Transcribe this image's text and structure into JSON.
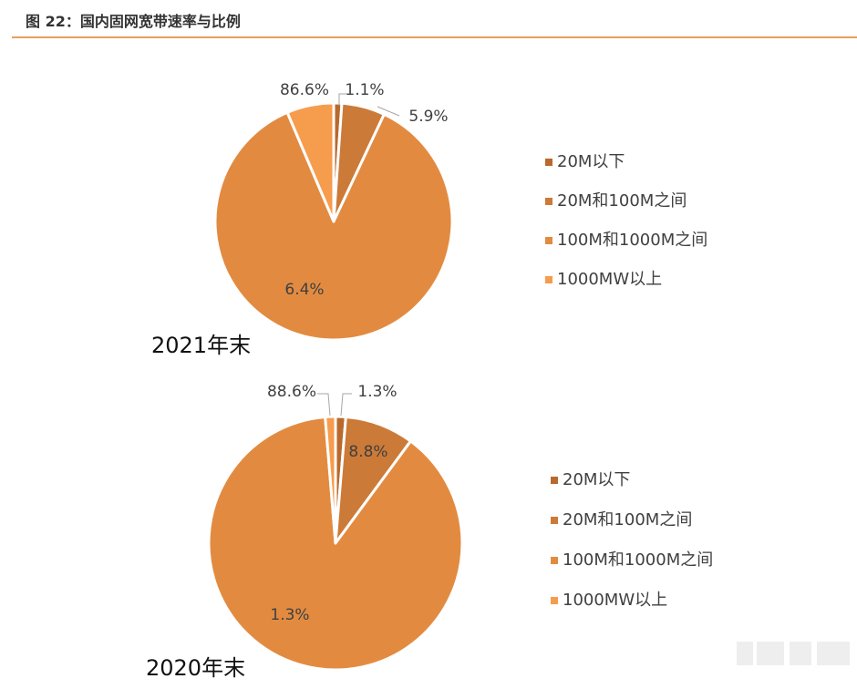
{
  "figure": {
    "title": "图 22：国内固网宽带速率与比例"
  },
  "colors": {
    "rule": "#e8a05a",
    "slice": [
      "#b9692e",
      "#cc7a38",
      "#e28b40",
      "#f69c4d"
    ],
    "label": "#404040",
    "leader": "#a6a6a6"
  },
  "chart_data": [
    {
      "type": "pie",
      "title": "2021年末",
      "categories": [
        "20M以下",
        "20M和100M之间",
        "100M和1000M之间",
        "1000MW以上"
      ],
      "values": [
        1.1,
        5.9,
        86.6,
        6.4
      ],
      "labels": [
        "1.1%",
        "5.9%",
        "86.6%",
        "6.4%"
      ],
      "legend_position": "right"
    },
    {
      "type": "pie",
      "title": "2020年末",
      "categories": [
        "20M以下",
        "20M和100M之间",
        "100M和1000M之间",
        "1000MW以上"
      ],
      "values": [
        1.3,
        8.8,
        88.6,
        1.3
      ],
      "labels": [
        "1.3%",
        "8.8%",
        "88.6%",
        "1.3%"
      ],
      "legend_position": "right"
    }
  ]
}
